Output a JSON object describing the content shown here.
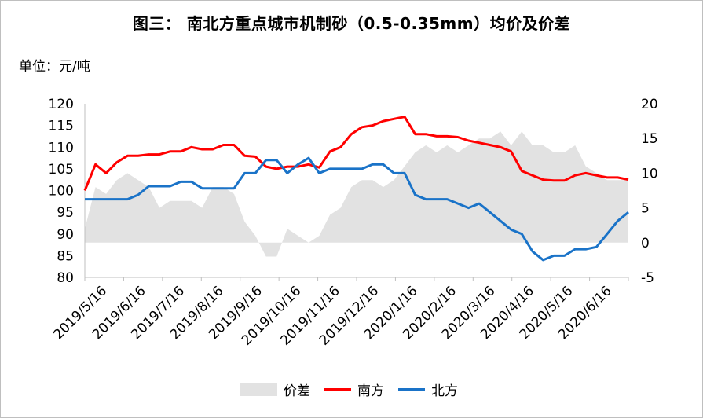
{
  "title": "图三： 南北方重点城市机制砂（0.5-0.35mm）均价及价差",
  "unit_label": "单位：元/吨",
  "colors": {
    "area": "#e2e2e2",
    "south": "#ff0000",
    "north": "#1a73c8"
  },
  "legend": {
    "area": "价差",
    "south": "南方",
    "north": "北方"
  },
  "chart_data": {
    "type": "line",
    "title": "图三： 南北方重点城市机制砂（0.5-0.35mm）均价及价差",
    "ylabel": "单位：元/吨",
    "ylim_left": [
      80,
      120
    ],
    "ylim_right": [
      -5,
      20
    ],
    "left_ticks": [
      "120",
      "115",
      "110",
      "105",
      "100",
      "95",
      "90",
      "85",
      "80"
    ],
    "right_ticks": [
      "20",
      "15",
      "10",
      "5",
      "0",
      "-5"
    ],
    "x_labels": [
      "2019/5/16",
      "2019/6/16",
      "2019/7/16",
      "2019/8/16",
      "2019/9/16",
      "2019/10/16",
      "2019/11/16",
      "2019/12/16",
      "2020/1/16",
      "2020/2/16",
      "2020/3/16",
      "2020/4/16",
      "2020/5/16",
      "2020/6/16"
    ],
    "grid": false,
    "legend_position": "bottom",
    "series": [
      {
        "name": "价差",
        "axis": "right",
        "type": "area",
        "values": [
          2,
          8,
          7,
          9,
          10,
          9,
          8,
          5,
          6,
          6,
          6,
          5,
          8,
          8,
          7,
          3,
          1,
          -2,
          -2,
          2,
          1,
          0,
          1,
          4,
          5,
          8,
          9,
          9,
          8,
          9,
          11,
          13,
          14,
          13,
          14,
          13,
          14,
          15,
          15,
          16,
          14,
          16,
          14,
          14,
          13,
          13,
          14,
          11,
          10,
          9,
          9,
          9
        ]
      },
      {
        "name": "南方",
        "axis": "left",
        "type": "line",
        "values": [
          100,
          106,
          104,
          106.5,
          108,
          108,
          108.3,
          108.3,
          109,
          109,
          110,
          109.5,
          109.5,
          110.5,
          110.5,
          108,
          107.8,
          105.5,
          105,
          105.5,
          105.5,
          106,
          105.3,
          109,
          110,
          113,
          114.6,
          115,
          116,
          116.5,
          117,
          113,
          113,
          112.5,
          112.5,
          112.3,
          111.5,
          111,
          110.5,
          110,
          109,
          104.5,
          103.5,
          102.5,
          102.3,
          102.3,
          103.5,
          104,
          103.5,
          103,
          103,
          102.5
        ]
      },
      {
        "name": "北方",
        "axis": "left",
        "type": "line",
        "values": [
          98,
          98,
          98,
          98,
          98,
          99,
          101,
          101,
          101,
          102,
          102,
          100.5,
          100.5,
          100.5,
          100.5,
          104,
          104,
          107,
          107,
          104,
          106,
          107.5,
          104,
          105,
          105,
          105,
          105,
          106,
          106,
          104,
          104,
          99,
          98,
          98,
          98,
          97,
          96,
          97,
          95,
          93,
          91,
          90,
          86,
          84,
          85,
          85,
          86.5,
          86.5,
          87,
          90,
          93,
          95
        ]
      }
    ]
  }
}
